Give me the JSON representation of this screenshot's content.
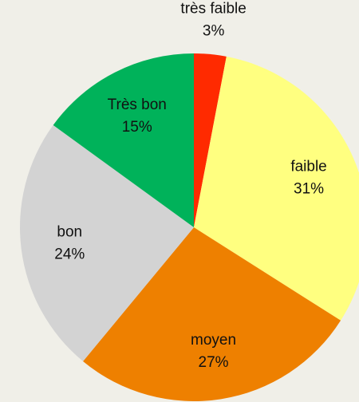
{
  "chart_data": {
    "type": "pie",
    "categories": [
      "très faible",
      "faible",
      "moyen",
      "bon",
      "Très bon"
    ],
    "values": [
      3,
      31,
      27,
      24,
      15
    ],
    "value_labels": [
      "3%",
      "31%",
      "27%",
      "24%",
      "15%"
    ],
    "colors": [
      "#ff2a00",
      "#ffff80",
      "#ee8000",
      "#d3d3d3",
      "#00b25a"
    ]
  }
}
